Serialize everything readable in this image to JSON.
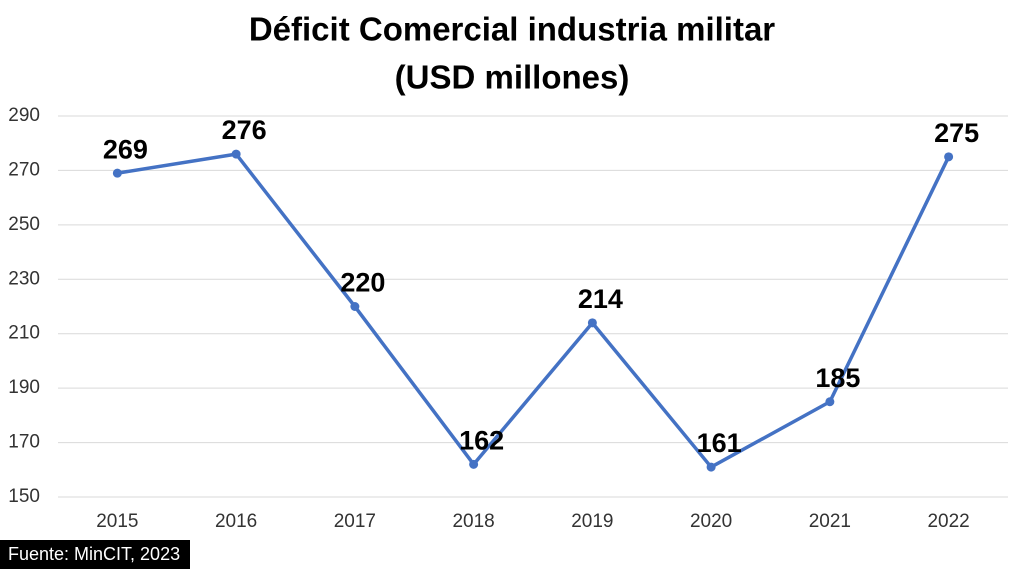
{
  "chart_data": {
    "type": "line",
    "title": "Déficit Comercial industria militar",
    "subtitle": "(USD millones)",
    "source": "Fuente: MinCIT, 2023",
    "categories": [
      "2015",
      "2016",
      "2017",
      "2018",
      "2019",
      "2020",
      "2021",
      "2022"
    ],
    "values": [
      269,
      276,
      220,
      162,
      214,
      161,
      185,
      275
    ],
    "color": "#4472c4",
    "ylim": [
      150,
      290
    ],
    "yticks": [
      150,
      170,
      190,
      210,
      230,
      250,
      270,
      290
    ],
    "grid": true
  }
}
